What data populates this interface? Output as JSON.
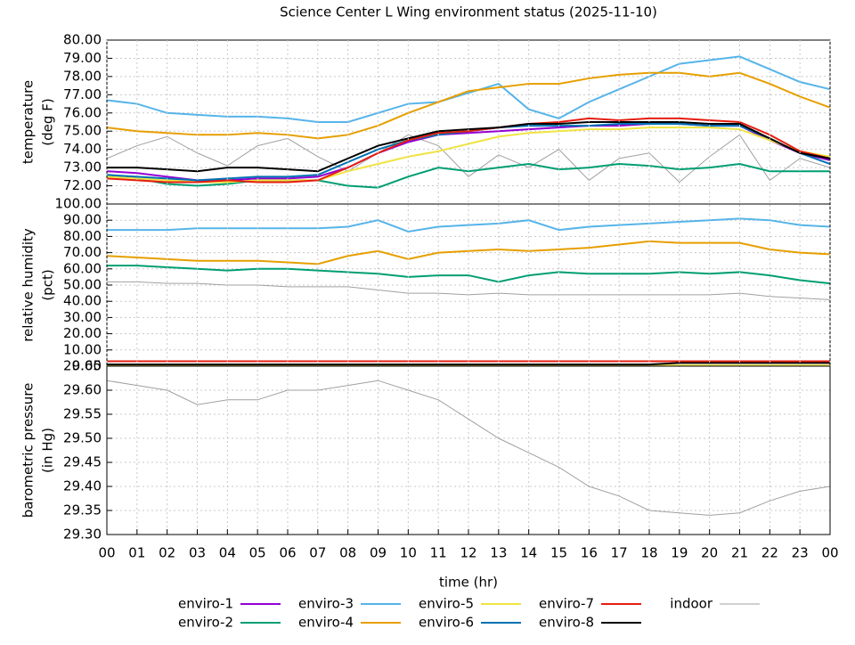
{
  "chart_data": [
    {
      "type": "line",
      "title": "Science Center L Wing environment status (2025-11-10)",
      "ylabel": [
        "temperature",
        "(deg F)"
      ],
      "x": [
        0,
        1,
        2,
        3,
        4,
        5,
        6,
        7,
        8,
        9,
        10,
        11,
        12,
        13,
        14,
        15,
        16,
        17,
        18,
        19,
        20,
        21,
        22,
        23,
        24
      ],
      "xlim": [
        0,
        24
      ],
      "ylim": [
        71,
        80
      ],
      "yticks": [
        {
          "value": 72,
          "label": "72.00"
        },
        {
          "value": 73,
          "label": "73.00"
        },
        {
          "value": 74,
          "label": "74.00"
        },
        {
          "value": 75,
          "label": "75.00"
        },
        {
          "value": 76,
          "label": "76.00"
        },
        {
          "value": 77,
          "label": "77.00"
        },
        {
          "value": 78,
          "label": "78.00"
        },
        {
          "value": 79,
          "label": "79.00"
        },
        {
          "value": 80,
          "label": "80.00"
        }
      ],
      "grid": true,
      "series": [
        {
          "name": "indoor",
          "color": "#a0a0a0",
          "values": [
            73.5,
            74.2,
            74.7,
            73.8,
            73.1,
            74.2,
            74.6,
            73.6,
            72.8,
            73.8,
            74.8,
            74.2,
            72.5,
            73.7,
            73.0,
            74.0,
            72.3,
            73.5,
            73.8,
            72.2,
            73.6,
            74.8,
            72.3,
            73.5,
            73.0
          ]
        },
        {
          "name": "enviro-1",
          "color": "#9400d3",
          "values": [
            72.8,
            72.7,
            72.5,
            72.3,
            72.3,
            72.4,
            72.4,
            72.5,
            73.0,
            73.8,
            74.4,
            74.8,
            74.9,
            75.0,
            75.1,
            75.2,
            75.3,
            75.3,
            75.4,
            75.4,
            75.3,
            75.3,
            74.5,
            73.8,
            73.4
          ]
        },
        {
          "name": "enviro-2",
          "color": "#009e73",
          "values": [
            72.6,
            72.4,
            72.1,
            72.0,
            72.1,
            72.3,
            72.3,
            72.3,
            72.0,
            71.9,
            72.5,
            73.0,
            72.8,
            73.0,
            73.2,
            72.9,
            73.0,
            73.2,
            73.1,
            72.9,
            73.0,
            73.2,
            72.8,
            72.8,
            72.8
          ]
        },
        {
          "name": "enviro-3",
          "color": "#56b4e9",
          "values": [
            76.7,
            76.5,
            76.0,
            75.9,
            75.8,
            75.8,
            75.7,
            75.5,
            75.5,
            76.0,
            76.5,
            76.6,
            77.1,
            77.6,
            76.2,
            75.7,
            76.6,
            77.3,
            78.0,
            78.7,
            78.9,
            79.1,
            78.4,
            77.7,
            77.3
          ]
        },
        {
          "name": "enviro-4",
          "color": "#e69f00",
          "values": [
            75.2,
            75.0,
            74.9,
            74.8,
            74.8,
            74.9,
            74.8,
            74.6,
            74.8,
            75.3,
            76.0,
            76.6,
            77.2,
            77.4,
            77.6,
            77.6,
            77.9,
            78.1,
            78.2,
            78.2,
            78.0,
            78.2,
            77.6,
            76.9,
            76.3
          ]
        },
        {
          "name": "enviro-5",
          "color": "#f0e442",
          "values": [
            72.5,
            72.4,
            72.3,
            72.2,
            72.2,
            72.3,
            72.3,
            72.3,
            72.8,
            73.2,
            73.6,
            73.9,
            74.3,
            74.7,
            74.9,
            75.0,
            75.1,
            75.1,
            75.2,
            75.2,
            75.2,
            75.1,
            74.5,
            73.9,
            73.6
          ]
        },
        {
          "name": "enviro-6",
          "color": "#0072b2",
          "values": [
            72.6,
            72.5,
            72.4,
            72.3,
            72.4,
            72.5,
            72.5,
            72.6,
            73.3,
            74.0,
            74.5,
            74.8,
            75.0,
            75.2,
            75.3,
            75.3,
            75.3,
            75.4,
            75.4,
            75.4,
            75.3,
            75.3,
            74.6,
            73.8,
            73.2
          ]
        },
        {
          "name": "enviro-7",
          "color": "#e51e10",
          "values": [
            72.4,
            72.3,
            72.2,
            72.2,
            72.3,
            72.2,
            72.2,
            72.3,
            73.0,
            73.8,
            74.5,
            74.9,
            75.0,
            75.2,
            75.4,
            75.5,
            75.7,
            75.6,
            75.7,
            75.7,
            75.6,
            75.5,
            74.8,
            73.9,
            73.5
          ]
        },
        {
          "name": "enviro-8",
          "color": "#000000",
          "values": [
            73.0,
            73.0,
            72.9,
            72.8,
            73.0,
            73.0,
            72.9,
            72.8,
            73.5,
            74.2,
            74.6,
            75.0,
            75.1,
            75.2,
            75.4,
            75.4,
            75.5,
            75.5,
            75.5,
            75.5,
            75.4,
            75.4,
            74.6,
            73.8,
            73.5
          ]
        }
      ]
    },
    {
      "type": "line",
      "ylabel": [
        "relative humidity",
        "(pct)"
      ],
      "x": [
        0,
        1,
        2,
        3,
        4,
        5,
        6,
        7,
        8,
        9,
        10,
        11,
        12,
        13,
        14,
        15,
        16,
        17,
        18,
        19,
        20,
        21,
        22,
        23,
        24
      ],
      "xlim": [
        0,
        24
      ],
      "ylim": [
        0,
        100
      ],
      "yticks": [
        {
          "value": 0,
          "label": "0.00"
        },
        {
          "value": 10,
          "label": "10.00"
        },
        {
          "value": 20,
          "label": "20.00"
        },
        {
          "value": 30,
          "label": "30.00"
        },
        {
          "value": 40,
          "label": "40.00"
        },
        {
          "value": 50,
          "label": "50.00"
        },
        {
          "value": 60,
          "label": "60.00"
        },
        {
          "value": 70,
          "label": "70.00"
        },
        {
          "value": 80,
          "label": "80.00"
        },
        {
          "value": 90,
          "label": "90.00"
        },
        {
          "value": 100,
          "label": "100.00"
        }
      ],
      "grid": true,
      "series": [
        {
          "color": "#a0a0a0",
          "values": [
            52,
            52,
            51,
            51,
            50,
            50,
            49,
            49,
            49,
            47,
            45,
            45,
            44,
            45,
            44,
            44,
            44,
            44,
            44,
            44,
            44,
            45,
            43,
            42,
            41
          ]
        },
        {
          "color": "#009e73",
          "values": [
            62,
            62,
            61,
            60,
            59,
            60,
            60,
            59,
            58,
            57,
            55,
            56,
            56,
            52,
            56,
            58,
            57,
            57,
            57,
            58,
            57,
            58,
            56,
            53,
            51
          ]
        },
        {
          "color": "#56b4e9",
          "values": [
            84,
            84,
            84,
            85,
            85,
            85,
            85,
            85,
            86,
            90,
            83,
            86,
            87,
            88,
            90,
            84,
            86,
            87,
            88,
            89,
            90,
            91,
            90,
            87,
            86
          ]
        },
        {
          "color": "#e69f00",
          "values": [
            68,
            67,
            66,
            65,
            65,
            65,
            64,
            63,
            68,
            71,
            66,
            70,
            71,
            72,
            71,
            72,
            73,
            75,
            77,
            76,
            76,
            76,
            72,
            70,
            69
          ]
        },
        {
          "color": "#f0e442",
          "values": [
            0.5,
            0.5,
            0.5,
            0.5,
            0.5,
            0.5,
            0.5,
            0.5,
            0.5,
            0.5,
            0.5,
            0.5,
            0.5,
            0.5,
            0.5,
            0.5,
            0.5,
            0.5,
            0.5,
            0.5,
            0.5,
            0.5,
            0.5,
            0.5,
            0.5
          ]
        },
        {
          "color": "#000000",
          "values": [
            1,
            1,
            1,
            1,
            1,
            1,
            1,
            1,
            1,
            1,
            1,
            1,
            1,
            1,
            1,
            1,
            1,
            1,
            1,
            2,
            2,
            2,
            2,
            2,
            2
          ]
        },
        {
          "color": "#e51e10",
          "values": [
            3,
            3,
            3,
            3,
            3,
            3,
            3,
            3,
            3,
            3,
            3,
            3,
            3,
            3,
            3,
            3,
            3,
            3,
            3,
            3,
            3,
            3,
            3,
            3,
            3
          ]
        }
      ]
    },
    {
      "type": "line",
      "ylabel": [
        "barometric pressure",
        "(in Hg)"
      ],
      "xlabel": "time (hr)",
      "x": [
        0,
        1,
        2,
        3,
        4,
        5,
        6,
        7,
        8,
        9,
        10,
        11,
        12,
        13,
        14,
        15,
        16,
        17,
        18,
        19,
        20,
        21,
        22,
        23,
        24
      ],
      "xlim": [
        0,
        24
      ],
      "xticks": [
        {
          "value": 0,
          "label": "00"
        },
        {
          "value": 1,
          "label": "01"
        },
        {
          "value": 2,
          "label": "02"
        },
        {
          "value": 3,
          "label": "03"
        },
        {
          "value": 4,
          "label": "04"
        },
        {
          "value": 5,
          "label": "05"
        },
        {
          "value": 6,
          "label": "06"
        },
        {
          "value": 7,
          "label": "07"
        },
        {
          "value": 8,
          "label": "08"
        },
        {
          "value": 9,
          "label": "09"
        },
        {
          "value": 10,
          "label": "10"
        },
        {
          "value": 11,
          "label": "11"
        },
        {
          "value": 12,
          "label": "12"
        },
        {
          "value": 13,
          "label": "13"
        },
        {
          "value": 14,
          "label": "14"
        },
        {
          "value": 15,
          "label": "15"
        },
        {
          "value": 16,
          "label": "16"
        },
        {
          "value": 17,
          "label": "17"
        },
        {
          "value": 18,
          "label": "18"
        },
        {
          "value": 19,
          "label": "19"
        },
        {
          "value": 20,
          "label": "20"
        },
        {
          "value": 21,
          "label": "21"
        },
        {
          "value": 22,
          "label": "22"
        },
        {
          "value": 23,
          "label": "23"
        },
        {
          "value": 24,
          "label": "00"
        }
      ],
      "ylim": [
        29.3,
        29.65
      ],
      "yticks": [
        {
          "value": 29.3,
          "label": "29.30"
        },
        {
          "value": 29.35,
          "label": "29.35"
        },
        {
          "value": 29.4,
          "label": "29.40"
        },
        {
          "value": 29.45,
          "label": "29.45"
        },
        {
          "value": 29.5,
          "label": "29.50"
        },
        {
          "value": 29.55,
          "label": "29.55"
        },
        {
          "value": 29.6,
          "label": "29.60"
        },
        {
          "value": 29.65,
          "label": "29.65"
        }
      ],
      "grid": true,
      "series": [
        {
          "color": "#a0a0a0",
          "values": [
            29.62,
            29.61,
            29.6,
            29.57,
            29.58,
            29.58,
            29.6,
            29.6,
            29.61,
            29.62,
            29.6,
            29.58,
            29.54,
            29.5,
            29.47,
            29.44,
            29.4,
            29.38,
            29.35,
            29.345,
            29.34,
            29.345,
            29.37,
            29.39,
            29.4
          ]
        }
      ]
    }
  ]
}
